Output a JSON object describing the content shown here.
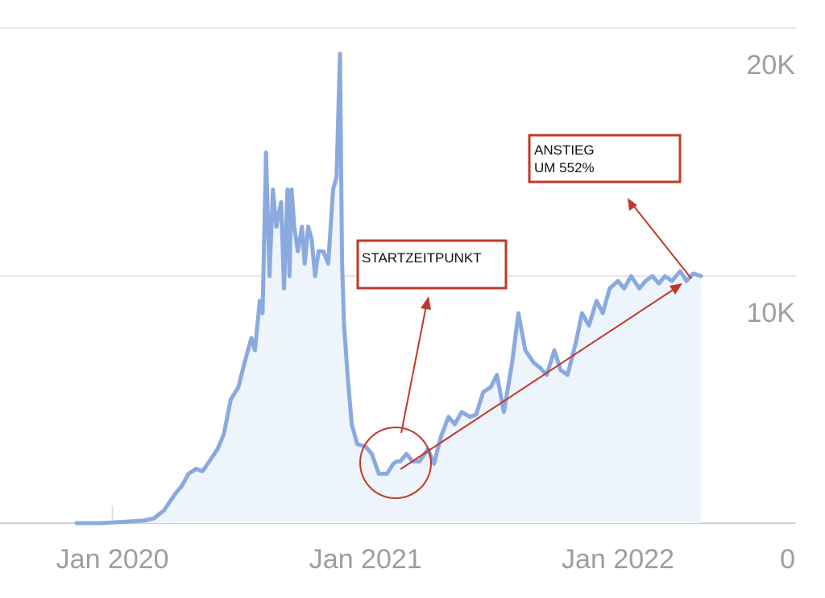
{
  "chart_data": {
    "type": "area",
    "x_tick_labels": [
      "Jan 2020",
      "Jan 2021",
      "Jan 2022"
    ],
    "y_tick_labels": [
      "0",
      "10K",
      "20K"
    ],
    "y_ticks": [
      0,
      10000,
      20000
    ],
    "ylim": [
      0,
      21000
    ],
    "xlim": [
      "2019-11-01",
      "2022-06-01"
    ],
    "grid": true,
    "y_axis_side": "right",
    "colors": {
      "line": "#8aaadf",
      "fill": "#eef4fb",
      "annotation": "#c0392b"
    },
    "series": [
      {
        "x": [
          "2019-11-10",
          "2019-12-15",
          "2020-01-15",
          "2020-02-15",
          "2020-03-01",
          "2020-03-15",
          "2020-04-01",
          "2020-04-10",
          "2020-04-20",
          "2020-05-01",
          "2020-05-10",
          "2020-05-20",
          "2020-06-01",
          "2020-06-10",
          "2020-06-20",
          "2020-07-01",
          "2020-07-10",
          "2020-07-20",
          "2020-07-25",
          "2020-08-01",
          "2020-08-05",
          "2020-08-10",
          "2020-08-15",
          "2020-08-20",
          "2020-08-25",
          "2020-09-01",
          "2020-09-05",
          "2020-09-10",
          "2020-09-13",
          "2020-09-16",
          "2020-09-20",
          "2020-09-25",
          "2020-10-01",
          "2020-10-05",
          "2020-10-10",
          "2020-10-15",
          "2020-10-20",
          "2020-10-25",
          "2020-11-01",
          "2020-11-08",
          "2020-11-15",
          "2020-11-20",
          "2020-11-25",
          "2020-11-28",
          "2020-12-01",
          "2020-12-06",
          "2020-12-12",
          "2020-12-20",
          "2021-01-01",
          "2021-01-10",
          "2021-01-20",
          "2021-02-01",
          "2021-02-10",
          "2021-02-15",
          "2021-02-20",
          "2021-03-01",
          "2021-03-10",
          "2021-03-20",
          "2021-04-01",
          "2021-04-10",
          "2021-04-20",
          "2021-05-01",
          "2021-05-10",
          "2021-05-20",
          "2021-06-01",
          "2021-06-10",
          "2021-06-20",
          "2021-07-01",
          "2021-07-10",
          "2021-07-20",
          "2021-08-01",
          "2021-08-10",
          "2021-08-20",
          "2021-09-01",
          "2021-09-10",
          "2021-09-20",
          "2021-10-01",
          "2021-10-10",
          "2021-10-20",
          "2021-11-01",
          "2021-11-10",
          "2021-11-20",
          "2021-12-01",
          "2021-12-10",
          "2021-12-20",
          "2022-01-01",
          "2022-01-10",
          "2022-01-20",
          "2022-02-01",
          "2022-02-10",
          "2022-02-20",
          "2022-03-01",
          "2022-03-10",
          "2022-03-20",
          "2022-04-01",
          "2022-04-10",
          "2022-04-20",
          "2022-05-01"
        ],
        "y": [
          0,
          0,
          50,
          100,
          200,
          500,
          1200,
          1500,
          2000,
          2200,
          2100,
          2500,
          3000,
          3600,
          5000,
          5500,
          6500,
          7500,
          7000,
          9000,
          8500,
          15000,
          10000,
          13500,
          12000,
          13000,
          9500,
          13500,
          10000,
          13500,
          12000,
          11000,
          12000,
          10500,
          12000,
          11500,
          10000,
          11000,
          11000,
          10500,
          13500,
          14000,
          19000,
          10500,
          8000,
          6000,
          4000,
          3200,
          3100,
          2800,
          2000,
          2000,
          2400,
          2500,
          2500,
          2800,
          2500,
          2500,
          3000,
          2400,
          3500,
          4300,
          4000,
          4500,
          4300,
          4400,
          5300,
          5500,
          6000,
          4500,
          6500,
          8500,
          7000,
          6500,
          6300,
          6000,
          7000,
          6200,
          6000,
          7300,
          8500,
          8000,
          9000,
          8500,
          9500,
          9800,
          9500,
          10000,
          9500,
          9800,
          10000,
          9700,
          10000,
          9800,
          10200,
          9800,
          10100,
          10000
        ]
      }
    ],
    "annotations": [
      {
        "label": "STARTZEITPUNKT"
      },
      {
        "label": "ANSTIEG\nUM 552%"
      }
    ]
  }
}
